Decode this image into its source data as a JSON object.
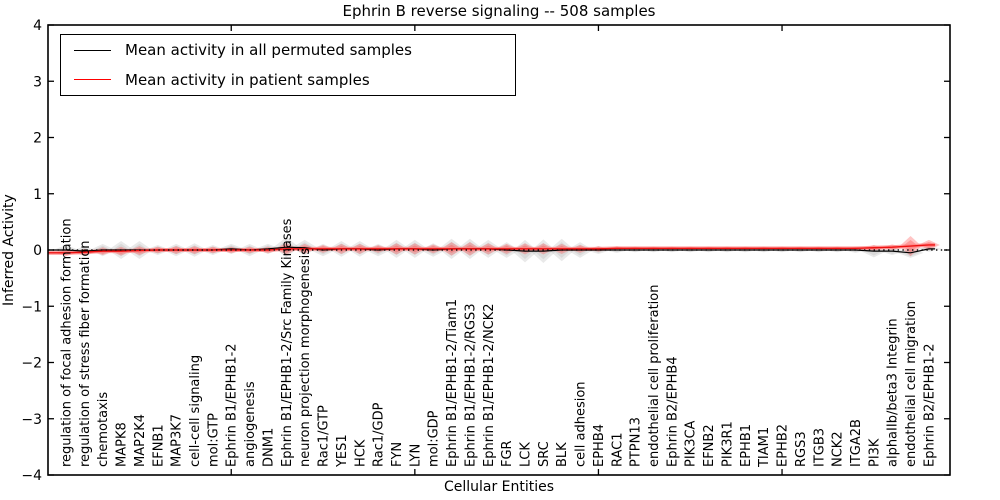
{
  "title": "Ephrin B reverse signaling -- 508 samples",
  "axes": {
    "xlabel": "Cellular Entities",
    "ylabel": "Inferred Activity",
    "yticks": [
      -4,
      -3,
      -2,
      -1,
      0,
      1,
      2,
      3,
      4
    ],
    "ylim": [
      -4,
      4
    ],
    "zero_line": "dotted",
    "frame_color": "#000000"
  },
  "legend": {
    "position": "upper-left",
    "entries": [
      {
        "label": "Mean activity in all permuted samples",
        "color": "#000000"
      },
      {
        "label": "Mean activity in patient samples",
        "color": "#ff0000"
      }
    ]
  },
  "chart_data": {
    "type": "line",
    "note": "mean lines with violin-shaped distribution envelopes around y=0",
    "categories": [
      "regulation of focal adhesion formation",
      "regulation of stress fiber formation",
      "chemotaxis",
      "MAPK8",
      "MAP2K4",
      "EFNB1",
      "MAP3K7",
      "cell-cell signaling",
      "mol:GTP",
      "Ephrin B1/EPHB1-2",
      "angiogenesis",
      "DNM1",
      "Ephrin B1/EPHB1-2/Src Family Kinases",
      "neuron projection morphogenesis",
      "Rac1/GTP",
      "YES1",
      "HCK",
      "Rac1/GDP",
      "FYN",
      "LYN",
      "mol:GDP",
      "Ephrin B1/EPHB1-2/Tiam1",
      "Ephrin B1/EPHB1-2/RGS3",
      "Ephrin B1/EPHB1-2/NCK2",
      "FGR",
      "LCK",
      "SRC",
      "BLK",
      "cell adhesion",
      "EPHB4",
      "RAC1",
      "PTPN13",
      "endothelial cell proliferation",
      "Ephrin B2/EPHB4",
      "PIK3CA",
      "EFNB2",
      "PIK3R1",
      "EPHB1",
      "TIAM1",
      "EPHB2",
      "RGS3",
      "ITGB3",
      "NCK2",
      "ITGA2B",
      "PI3K",
      "alphaIIb/beta3 Integrin",
      "endothelial cell migration",
      "Ephrin B2/EPHB1-2"
    ],
    "series": [
      {
        "name": "Mean activity in all permuted samples",
        "color": "#000000",
        "values": [
          0,
          -0.02,
          0,
          0,
          0,
          0,
          0,
          0,
          0,
          0.02,
          0,
          0.02,
          0.05,
          0.04,
          0,
          0.02,
          0.02,
          0,
          0.02,
          0.02,
          0,
          0.02,
          0.02,
          0.02,
          0,
          -0.02,
          -0.02,
          0,
          0,
          0,
          0,
          0,
          0,
          0,
          0,
          0,
          0,
          0,
          0,
          0,
          0,
          0,
          0,
          0,
          -0.02,
          -0.02,
          -0.05,
          0.02
        ]
      },
      {
        "name": "Mean activity in patient samples",
        "color": "#ff0000",
        "values": [
          -0.05,
          -0.04,
          -0.02,
          -0.02,
          -0.01,
          0,
          0,
          0,
          0,
          0,
          0,
          0,
          0.02,
          0.02,
          0.02,
          0.02,
          0.02,
          0.02,
          0.02,
          0.02,
          0.02,
          0.02,
          0.02,
          0.02,
          0.02,
          0.02,
          0.02,
          0.02,
          0.02,
          0.02,
          0.03,
          0.03,
          0.03,
          0.03,
          0.03,
          0.03,
          0.03,
          0.03,
          0.03,
          0.03,
          0.03,
          0.03,
          0.03,
          0.03,
          0.04,
          0.05,
          0.07,
          0.09
        ]
      }
    ],
    "envelopes": [
      {
        "name": "permuted samples activity range",
        "color": "#999999",
        "half_widths": [
          0.09,
          0.09,
          0.11,
          0.16,
          0.16,
          0.09,
          0.11,
          0.12,
          0.09,
          0.09,
          0.11,
          0.09,
          0.18,
          0.14,
          0.11,
          0.14,
          0.14,
          0.11,
          0.16,
          0.16,
          0.12,
          0.18,
          0.18,
          0.16,
          0.14,
          0.2,
          0.21,
          0.2,
          0.14,
          0.07,
          0.05,
          0.04,
          0.04,
          0.04,
          0.04,
          0.04,
          0.04,
          0.04,
          0.04,
          0.04,
          0.04,
          0.04,
          0.04,
          0.05,
          0.11,
          0.07,
          0.09,
          0.05
        ]
      },
      {
        "name": "patient samples activity range",
        "color": "#ff4040",
        "half_widths": [
          0.06,
          0.06,
          0.07,
          0.08,
          0.08,
          0.06,
          0.07,
          0.07,
          0.06,
          0.06,
          0.06,
          0.06,
          0.11,
          0.09,
          0.07,
          0.09,
          0.09,
          0.07,
          0.1,
          0.1,
          0.08,
          0.12,
          0.12,
          0.1,
          0.09,
          0.1,
          0.1,
          0.09,
          0.07,
          0.05,
          0.04,
          0.03,
          0.03,
          0.03,
          0.03,
          0.03,
          0.03,
          0.03,
          0.03,
          0.03,
          0.03,
          0.03,
          0.03,
          0.03,
          0.05,
          0.05,
          0.18,
          0.09
        ]
      }
    ],
    "x_major_tick_positions": [
      10,
      20,
      30,
      40
    ],
    "ylim": [
      -4,
      4
    ]
  }
}
